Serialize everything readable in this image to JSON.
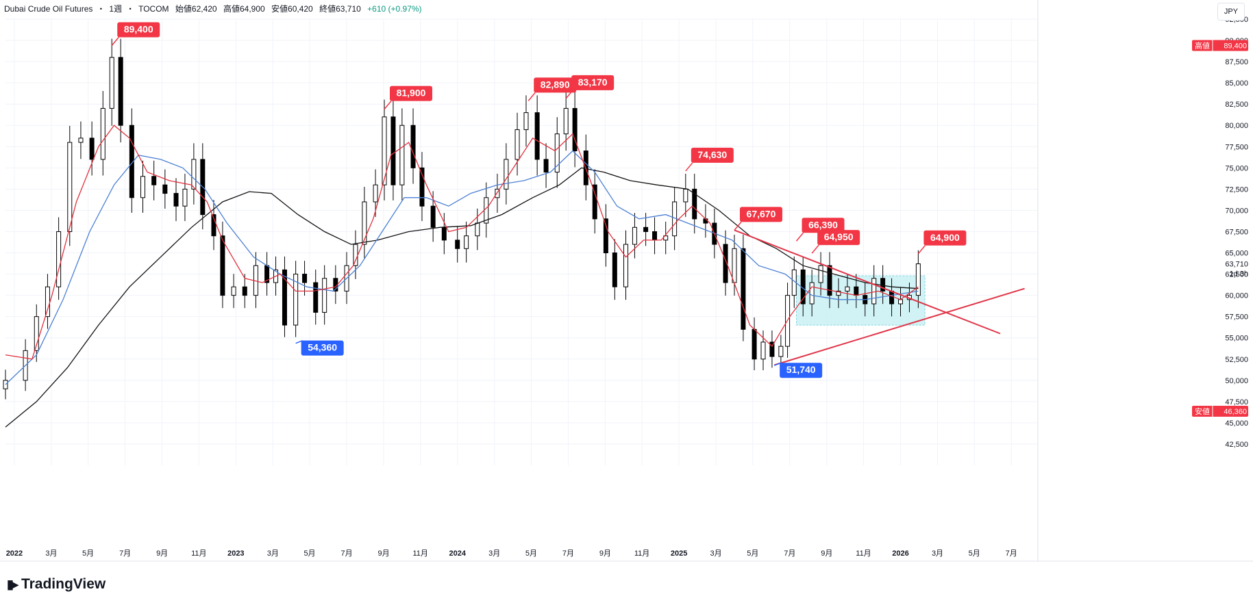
{
  "header": {
    "symbol": "Dubai Crude Oil Futures",
    "interval": "1週",
    "exchange": "TOCOM",
    "open": "始値62,420",
    "high": "高値64,900",
    "low": "安値60,420",
    "close": "終値63,710",
    "change": "+610 (+0.97%)",
    "separator": "・"
  },
  "currency_button": "JPY",
  "brand": "TradingView",
  "colors": {
    "up_candle": "#ffffff",
    "down_candle": "#000000",
    "wick": "#000000",
    "ma_short": "#e0303d",
    "ma_mid": "#4a7fd4",
    "ma_long": "#111111",
    "trendline": "#e03548",
    "high_label": "#f23645",
    "low_label": "#2962ff",
    "box_fill": "#bfeef2",
    "box_border": "#7fd3dc",
    "grid": "#f0f3fa"
  },
  "chart_data": {
    "type": "candlestick",
    "title": "Dubai Crude Oil Futures weekly",
    "y_axis_ticks": [
      "92,500",
      "90,000",
      "87,500",
      "85,000",
      "82,500",
      "80,000",
      "77,500",
      "75,000",
      "72,500",
      "70,000",
      "67,500",
      "65,000",
      "62,500",
      "60,000",
      "57,500",
      "55,000",
      "52,500",
      "50,000",
      "47,500",
      "45,000",
      "42,500"
    ],
    "ylim": [
      40000,
      92500
    ],
    "x_axis_ticks": [
      {
        "label": "2022",
        "date": 2022.0,
        "bold": true
      },
      {
        "label": "3月",
        "date": 2022.167
      },
      {
        "label": "5月",
        "date": 2022.333
      },
      {
        "label": "7月",
        "date": 2022.5
      },
      {
        "label": "9月",
        "date": 2022.667
      },
      {
        "label": "11月",
        "date": 2022.833
      },
      {
        "label": "2023",
        "date": 2023.0,
        "bold": true
      },
      {
        "label": "3月",
        "date": 2023.167
      },
      {
        "label": "5月",
        "date": 2023.333
      },
      {
        "label": "7月",
        "date": 2023.5
      },
      {
        "label": "9月",
        "date": 2023.667
      },
      {
        "label": "11月",
        "date": 2023.833
      },
      {
        "label": "2024",
        "date": 2024.0,
        "bold": true
      },
      {
        "label": "3月",
        "date": 2024.167
      },
      {
        "label": "5月",
        "date": 2024.333
      },
      {
        "label": "7月",
        "date": 2024.5
      },
      {
        "label": "9月",
        "date": 2024.667
      },
      {
        "label": "11月",
        "date": 2024.833
      },
      {
        "label": "2025",
        "date": 2025.0,
        "bold": true
      },
      {
        "label": "3月",
        "date": 2025.167
      },
      {
        "label": "5月",
        "date": 2025.333
      },
      {
        "label": "7月",
        "date": 2025.5
      },
      {
        "label": "9月",
        "date": 2025.667
      },
      {
        "label": "11月",
        "date": 2025.833
      },
      {
        "label": "2026",
        "date": 2026.0,
        "bold": true
      },
      {
        "label": "3月",
        "date": 2026.167
      },
      {
        "label": "5月",
        "date": 2026.333
      },
      {
        "label": "7月",
        "date": 2026.5
      }
    ],
    "xlim": [
      2021.96,
      2026.62
    ],
    "weekly_closes": [
      {
        "date": 2021.96,
        "close": 50000
      },
      {
        "date": 2022.05,
        "close": 53500
      },
      {
        "date": 2022.1,
        "close": 57500
      },
      {
        "date": 2022.15,
        "close": 61000
      },
      {
        "date": 2022.2,
        "close": 67500
      },
      {
        "date": 2022.25,
        "close": 78000
      },
      {
        "date": 2022.3,
        "close": 78500
      },
      {
        "date": 2022.35,
        "close": 76000
      },
      {
        "date": 2022.4,
        "close": 82000
      },
      {
        "date": 2022.44,
        "close": 88000
      },
      {
        "date": 2022.48,
        "close": 80000
      },
      {
        "date": 2022.53,
        "close": 71500
      },
      {
        "date": 2022.58,
        "close": 74000
      },
      {
        "date": 2022.63,
        "close": 73000
      },
      {
        "date": 2022.68,
        "close": 72000
      },
      {
        "date": 2022.73,
        "close": 70500
      },
      {
        "date": 2022.77,
        "close": 72500
      },
      {
        "date": 2022.81,
        "close": 76000
      },
      {
        "date": 2022.85,
        "close": 69500
      },
      {
        "date": 2022.9,
        "close": 67000
      },
      {
        "date": 2022.94,
        "close": 60000
      },
      {
        "date": 2022.99,
        "close": 61000
      },
      {
        "date": 2023.04,
        "close": 60000
      },
      {
        "date": 2023.09,
        "close": 63500
      },
      {
        "date": 2023.14,
        "close": 61500
      },
      {
        "date": 2023.18,
        "close": 63000
      },
      {
        "date": 2023.22,
        "close": 56500
      },
      {
        "date": 2023.27,
        "close": 62500
      },
      {
        "date": 2023.31,
        "close": 61500
      },
      {
        "date": 2023.36,
        "close": 58000
      },
      {
        "date": 2023.4,
        "close": 62000
      },
      {
        "date": 2023.45,
        "close": 60500
      },
      {
        "date": 2023.5,
        "close": 63500
      },
      {
        "date": 2023.54,
        "close": 66000
      },
      {
        "date": 2023.58,
        "close": 71000
      },
      {
        "date": 2023.63,
        "close": 73000
      },
      {
        "date": 2023.67,
        "close": 81000
      },
      {
        "date": 2023.71,
        "close": 73000
      },
      {
        "date": 2023.75,
        "close": 80000
      },
      {
        "date": 2023.8,
        "close": 75000
      },
      {
        "date": 2023.84,
        "close": 70500
      },
      {
        "date": 2023.89,
        "close": 68000
      },
      {
        "date": 2023.94,
        "close": 66500
      },
      {
        "date": 2024.0,
        "close": 65500
      },
      {
        "date": 2024.04,
        "close": 67000
      },
      {
        "date": 2024.09,
        "close": 68500
      },
      {
        "date": 2024.13,
        "close": 71500
      },
      {
        "date": 2024.18,
        "close": 72500
      },
      {
        "date": 2024.22,
        "close": 76000
      },
      {
        "date": 2024.27,
        "close": 79500
      },
      {
        "date": 2024.31,
        "close": 81500
      },
      {
        "date": 2024.36,
        "close": 76000
      },
      {
        "date": 2024.4,
        "close": 74500
      },
      {
        "date": 2024.45,
        "close": 79000
      },
      {
        "date": 2024.49,
        "close": 82000
      },
      {
        "date": 2024.53,
        "close": 77000
      },
      {
        "date": 2024.58,
        "close": 73000
      },
      {
        "date": 2024.62,
        "close": 69000
      },
      {
        "date": 2024.67,
        "close": 65000
      },
      {
        "date": 2024.71,
        "close": 61000
      },
      {
        "date": 2024.76,
        "close": 66000
      },
      {
        "date": 2024.8,
        "close": 68000
      },
      {
        "date": 2024.85,
        "close": 67500
      },
      {
        "date": 2024.89,
        "close": 66500
      },
      {
        "date": 2024.94,
        "close": 67000
      },
      {
        "date": 2024.98,
        "close": 71000
      },
      {
        "date": 2025.03,
        "close": 72500
      },
      {
        "date": 2025.07,
        "close": 69000
      },
      {
        "date": 2025.12,
        "close": 68500
      },
      {
        "date": 2025.16,
        "close": 66000
      },
      {
        "date": 2025.21,
        "close": 61500
      },
      {
        "date": 2025.25,
        "close": 65500
      },
      {
        "date": 2025.29,
        "close": 56000
      },
      {
        "date": 2025.34,
        "close": 52500
      },
      {
        "date": 2025.38,
        "close": 54500
      },
      {
        "date": 2025.42,
        "close": 52800
      },
      {
        "date": 2025.46,
        "close": 54000
      },
      {
        "date": 2025.49,
        "close": 60000
      },
      {
        "date": 2025.52,
        "close": 63000
      },
      {
        "date": 2025.56,
        "close": 59000
      },
      {
        "date": 2025.6,
        "close": 61500
      },
      {
        "date": 2025.64,
        "close": 63500
      },
      {
        "date": 2025.68,
        "close": 60000
      },
      {
        "date": 2025.72,
        "close": 60500
      },
      {
        "date": 2025.76,
        "close": 61000
      },
      {
        "date": 2025.8,
        "close": 60000
      },
      {
        "date": 2025.84,
        "close": 59000
      },
      {
        "date": 2025.88,
        "close": 62000
      },
      {
        "date": 2025.92,
        "close": 60500
      },
      {
        "date": 2025.96,
        "close": 59000
      },
      {
        "date": 2026.0,
        "close": 59500
      },
      {
        "date": 2026.04,
        "close": 60000
      },
      {
        "date": 2026.08,
        "close": 63710
      }
    ],
    "ma_short": [
      {
        "date": 2021.96,
        "value": 53000
      },
      {
        "date": 2022.08,
        "value": 52500
      },
      {
        "date": 2022.17,
        "value": 60000
      },
      {
        "date": 2022.28,
        "value": 71000
      },
      {
        "date": 2022.38,
        "value": 77500
      },
      {
        "date": 2022.45,
        "value": 80000
      },
      {
        "date": 2022.52,
        "value": 78500
      },
      {
        "date": 2022.6,
        "value": 74500
      },
      {
        "date": 2022.7,
        "value": 73500
      },
      {
        "date": 2022.8,
        "value": 73000
      },
      {
        "date": 2022.87,
        "value": 71000
      },
      {
        "date": 2022.94,
        "value": 66500
      },
      {
        "date": 2023.04,
        "value": 62000
      },
      {
        "date": 2023.12,
        "value": 61500
      },
      {
        "date": 2023.2,
        "value": 62500
      },
      {
        "date": 2023.27,
        "value": 60500
      },
      {
        "date": 2023.35,
        "value": 60500
      },
      {
        "date": 2023.45,
        "value": 61000
      },
      {
        "date": 2023.53,
        "value": 63500
      },
      {
        "date": 2023.62,
        "value": 69000
      },
      {
        "date": 2023.7,
        "value": 76500
      },
      {
        "date": 2023.78,
        "value": 78000
      },
      {
        "date": 2023.86,
        "value": 73000
      },
      {
        "date": 2023.96,
        "value": 67500
      },
      {
        "date": 2024.04,
        "value": 68000
      },
      {
        "date": 2024.14,
        "value": 70500
      },
      {
        "date": 2024.24,
        "value": 74500
      },
      {
        "date": 2024.34,
        "value": 78500
      },
      {
        "date": 2024.44,
        "value": 77000
      },
      {
        "date": 2024.52,
        "value": 79000
      },
      {
        "date": 2024.6,
        "value": 73500
      },
      {
        "date": 2024.68,
        "value": 67500
      },
      {
        "date": 2024.76,
        "value": 64500
      },
      {
        "date": 2024.84,
        "value": 66500
      },
      {
        "date": 2024.92,
        "value": 66500
      },
      {
        "date": 2025.0,
        "value": 69000
      },
      {
        "date": 2025.06,
        "value": 70500
      },
      {
        "date": 2025.14,
        "value": 68500
      },
      {
        "date": 2025.22,
        "value": 63500
      },
      {
        "date": 2025.32,
        "value": 56500
      },
      {
        "date": 2025.42,
        "value": 54000
      },
      {
        "date": 2025.5,
        "value": 57500
      },
      {
        "date": 2025.6,
        "value": 61000
      },
      {
        "date": 2025.7,
        "value": 60500
      },
      {
        "date": 2025.8,
        "value": 60000
      },
      {
        "date": 2025.9,
        "value": 60500
      },
      {
        "date": 2026.0,
        "value": 59500
      },
      {
        "date": 2026.08,
        "value": 61000
      }
    ],
    "ma_mid": [
      {
        "date": 2021.96,
        "value": 49500
      },
      {
        "date": 2022.1,
        "value": 53000
      },
      {
        "date": 2022.22,
        "value": 59500
      },
      {
        "date": 2022.34,
        "value": 67500
      },
      {
        "date": 2022.45,
        "value": 73000
      },
      {
        "date": 2022.56,
        "value": 76500
      },
      {
        "date": 2022.66,
        "value": 76000
      },
      {
        "date": 2022.76,
        "value": 75000
      },
      {
        "date": 2022.86,
        "value": 72500
      },
      {
        "date": 2022.96,
        "value": 68500
      },
      {
        "date": 2023.08,
        "value": 64500
      },
      {
        "date": 2023.2,
        "value": 62500
      },
      {
        "date": 2023.32,
        "value": 61000
      },
      {
        "date": 2023.44,
        "value": 60500
      },
      {
        "date": 2023.56,
        "value": 63500
      },
      {
        "date": 2023.66,
        "value": 67500
      },
      {
        "date": 2023.76,
        "value": 71500
      },
      {
        "date": 2023.86,
        "value": 71500
      },
      {
        "date": 2023.96,
        "value": 70500
      },
      {
        "date": 2024.06,
        "value": 72000
      },
      {
        "date": 2024.18,
        "value": 73000
      },
      {
        "date": 2024.3,
        "value": 73500
      },
      {
        "date": 2024.42,
        "value": 74500
      },
      {
        "date": 2024.52,
        "value": 77000
      },
      {
        "date": 2024.62,
        "value": 74500
      },
      {
        "date": 2024.72,
        "value": 70500
      },
      {
        "date": 2024.82,
        "value": 69000
      },
      {
        "date": 2024.94,
        "value": 69500
      },
      {
        "date": 2025.04,
        "value": 68500
      },
      {
        "date": 2025.14,
        "value": 67500
      },
      {
        "date": 2025.24,
        "value": 66500
      },
      {
        "date": 2025.36,
        "value": 63500
      },
      {
        "date": 2025.48,
        "value": 62500
      },
      {
        "date": 2025.6,
        "value": 60000
      },
      {
        "date": 2025.72,
        "value": 59500
      },
      {
        "date": 2025.84,
        "value": 59500
      },
      {
        "date": 2025.96,
        "value": 60000
      },
      {
        "date": 2026.08,
        "value": 60500
      }
    ],
    "ma_long": [
      {
        "date": 2021.96,
        "value": 44500
      },
      {
        "date": 2022.1,
        "value": 47500
      },
      {
        "date": 2022.24,
        "value": 51500
      },
      {
        "date": 2022.38,
        "value": 56500
      },
      {
        "date": 2022.52,
        "value": 61000
      },
      {
        "date": 2022.66,
        "value": 64500
      },
      {
        "date": 2022.8,
        "value": 68000
      },
      {
        "date": 2022.94,
        "value": 71000
      },
      {
        "date": 2023.06,
        "value": 72200
      },
      {
        "date": 2023.16,
        "value": 72000
      },
      {
        "date": 2023.28,
        "value": 69500
      },
      {
        "date": 2023.4,
        "value": 67500
      },
      {
        "date": 2023.52,
        "value": 66000
      },
      {
        "date": 2023.64,
        "value": 66500
      },
      {
        "date": 2023.78,
        "value": 67500
      },
      {
        "date": 2023.92,
        "value": 68000
      },
      {
        "date": 2024.06,
        "value": 68200
      },
      {
        "date": 2024.2,
        "value": 69500
      },
      {
        "date": 2024.34,
        "value": 71500
      },
      {
        "date": 2024.46,
        "value": 73000
      },
      {
        "date": 2024.56,
        "value": 75000
      },
      {
        "date": 2024.66,
        "value": 74500
      },
      {
        "date": 2024.78,
        "value": 73500
      },
      {
        "date": 2024.9,
        "value": 73000
      },
      {
        "date": 2025.04,
        "value": 72500
      },
      {
        "date": 2025.18,
        "value": 70000
      },
      {
        "date": 2025.32,
        "value": 67000
      },
      {
        "date": 2025.44,
        "value": 65500
      },
      {
        "date": 2025.56,
        "value": 63500
      },
      {
        "date": 2025.7,
        "value": 62500
      },
      {
        "date": 2025.84,
        "value": 61500
      },
      {
        "date": 2025.96,
        "value": 61000
      },
      {
        "date": 2026.08,
        "value": 60800
      }
    ],
    "trendlines": [
      {
        "name": "upper",
        "from": {
          "date": 2025.25,
          "value": 67670
        },
        "to": {
          "date": 2026.45,
          "value": 55500
        }
      },
      {
        "name": "lower",
        "from": {
          "date": 2025.43,
          "value": 51800
        },
        "to": {
          "date": 2026.56,
          "value": 60800
        }
      }
    ],
    "consolidation_box": {
      "date_from": 2025.53,
      "date_to": 2026.11,
      "value_from": 56500,
      "value_to": 62300
    },
    "annotations": [
      {
        "text": "89,400",
        "type": "high",
        "date": 2022.44,
        "value": 89400
      },
      {
        "text": "81,900",
        "type": "high",
        "date": 2023.67,
        "value": 81900
      },
      {
        "text": "82,890",
        "type": "high",
        "date": 2024.32,
        "value": 82890
      },
      {
        "text": "83,170",
        "type": "high",
        "date": 2024.49,
        "value": 83170
      },
      {
        "text": "74,630",
        "type": "high",
        "date": 2025.03,
        "value": 74630
      },
      {
        "text": "67,670",
        "type": "high",
        "date": 2025.25,
        "value": 67670
      },
      {
        "text": "66,390",
        "type": "high",
        "date": 2025.53,
        "value": 66390
      },
      {
        "text": "64,950",
        "type": "high",
        "date": 2025.6,
        "value": 64950
      },
      {
        "text": "64,900",
        "type": "high",
        "date": 2026.08,
        "value": 64900
      },
      {
        "text": "54,360",
        "type": "low",
        "date": 2023.27,
        "value": 54360
      },
      {
        "text": "51,740",
        "type": "low",
        "date": 2025.43,
        "value": 51740
      }
    ],
    "price_axis_labels": {
      "last_price": "63,710",
      "countdown": "1d 3h",
      "high_tag": {
        "label": "高値",
        "value": "89,400"
      },
      "low_tag": {
        "label": "安値",
        "value": "46,360"
      }
    }
  }
}
